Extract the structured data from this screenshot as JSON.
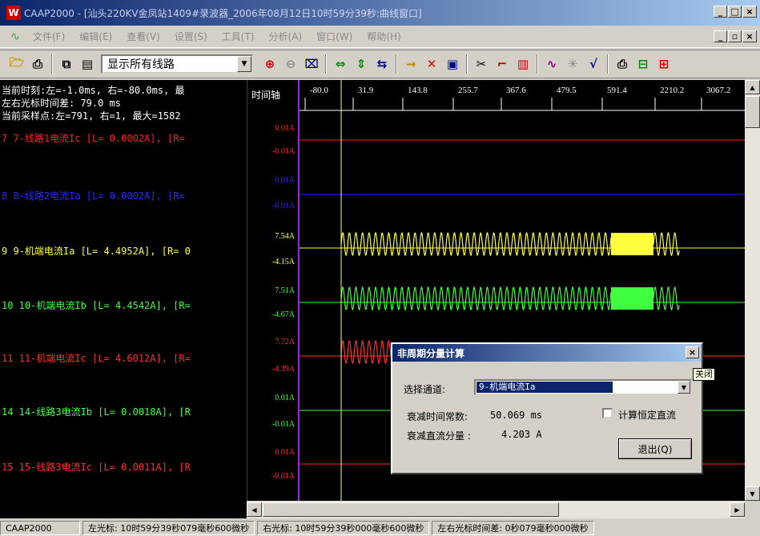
{
  "window": {
    "logo": "W",
    "title": "CAAP2000 - [汕头220KV金凤站1409#录波器_2006年08月12日10时59分39秒:曲线窗口]",
    "min": "_",
    "max": "□",
    "close": "×",
    "mdi_min": "_",
    "mdi_restore": "▫",
    "mdi_close": "×"
  },
  "menu": {
    "icon": "wave-icon",
    "items": [
      "文件(F)",
      "编辑(E)",
      "查看(V)",
      "设置(S)",
      "工具(T)",
      "分析(A)",
      "窗口(W)",
      "帮助(H)"
    ]
  },
  "toolbar": {
    "line_select": "显示所有线路"
  },
  "left_panel": {
    "info": [
      "当前时刻:左=-1.0ms, 右=-80.0ms, 最",
      "左右光标时间差: 79.0 ms",
      "当前采样点:左=791, 右=1, 最大=1582"
    ],
    "channels": [
      {
        "text": "7 7-线路1电流Ic [L= 0.0002A], [R=",
        "color": "#ff2020"
      },
      {
        "text": "8 8-线路2电流Ia [L= 0.0002A], [R=",
        "color": "#2a2aff"
      },
      {
        "text": "9 9-机端电流Ia [L= 4.4952A], [R= 0",
        "color": "#ffff40"
      },
      {
        "text": "10 10-机端电流Ib [L= 4.4542A], [R=",
        "color": "#40ff40"
      },
      {
        "text": "11 11-机端电流Ic [L= 4.6012A], [R=",
        "color": "#ff3030"
      },
      {
        "text": "14 14-线路3电流Ib [L= 0.0018A], [R",
        "color": "#40ff40"
      },
      {
        "text": "15 15-线路3电流Ic [L= 0.0011A], [R",
        "color": "#ff3030"
      }
    ]
  },
  "time_axis": {
    "label": "时间轴",
    "ticks": [
      "-80.0",
      "31.9",
      "143.8",
      "255.7",
      "367.6",
      "479.5",
      "591.4",
      "2210.2",
      "3067.2"
    ]
  },
  "channel_scales": [
    {
      "top": "0.01A",
      "bottom": "-0.01A",
      "color": "#ff2020"
    },
    {
      "top": "0.01A",
      "bottom": "-0.01A",
      "color": "#2a2aff"
    },
    {
      "top": "7.54A",
      "bottom": "-4.15A",
      "color": "#ffff40"
    },
    {
      "top": "7.51A",
      "bottom": "-4.67A",
      "color": "#40ff40"
    },
    {
      "top": "7.72A",
      "bottom": "-4.39A",
      "color": "#ff3030"
    },
    {
      "top": "0.01A",
      "bottom": "-0.01A",
      "color": "#40ff40"
    },
    {
      "top": "0.01A",
      "bottom": "-0.01A",
      "color": "#ff3030"
    }
  ],
  "status": {
    "app": "CAAP2000",
    "left_cursor": "左光标: 10时59分39秒079毫秒600微秒",
    "right_cursor": "右光标: 10时59分39秒000毫秒600微秒",
    "diff": "左右光标时间差: 0秒079毫秒000微秒"
  },
  "dialog": {
    "title": "非周期分量计算",
    "close": "×",
    "tooltip": "关闭",
    "channel_label": "选择通道:",
    "channel_value": "9-机端电流Ia",
    "time_const_label": "衰减时间常数:",
    "time_const_value": "50.069 ms",
    "dc_label": "衰减直流分量 :",
    "dc_value": "4.203 A",
    "checkbox_label": "计算恒定直流",
    "exit_button": "退出(Q)"
  }
}
